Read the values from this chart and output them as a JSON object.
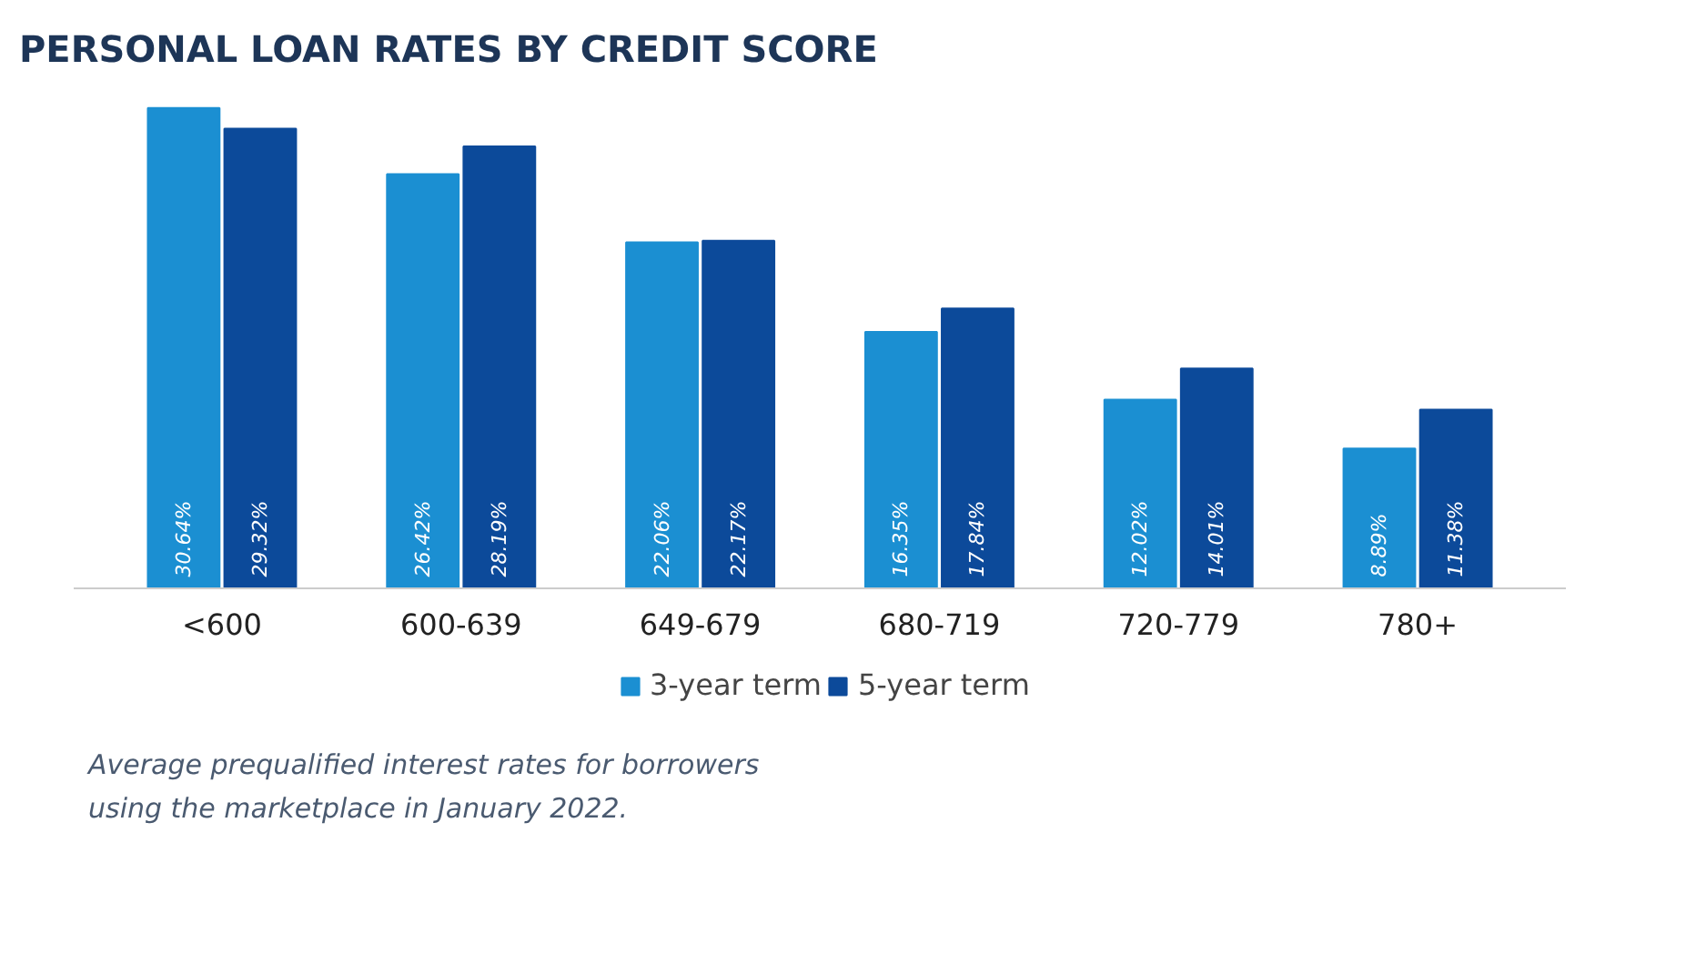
{
  "chart_data": {
    "type": "bar",
    "title": "PERSONAL LOAN RATES BY CREDIT SCORE",
    "categories": [
      "<600",
      "600-639",
      "649-679",
      "680-719",
      "720-779",
      "780+"
    ],
    "series": [
      {
        "name": "3-year term",
        "color": "#1b8fd2",
        "values": [
          30.64,
          26.42,
          22.06,
          16.35,
          12.02,
          8.89
        ],
        "value_labels": [
          "30.64%",
          "26.42%",
          "22.06%",
          "16.35%",
          "12.02%",
          "8.89%"
        ]
      },
      {
        "name": "5-year term",
        "color": "#0c4a9a",
        "values": [
          29.32,
          28.19,
          22.17,
          17.84,
          14.01,
          11.38
        ],
        "value_labels": [
          "29.32%",
          "28.19%",
          "22.17%",
          "17.84%",
          "14.01%",
          "11.38%"
        ]
      }
    ],
    "legend": "bottom",
    "grid": false,
    "annotations": [
      "Average prequalified interest rates for borrowers using the marketplace in January 2022."
    ]
  }
}
